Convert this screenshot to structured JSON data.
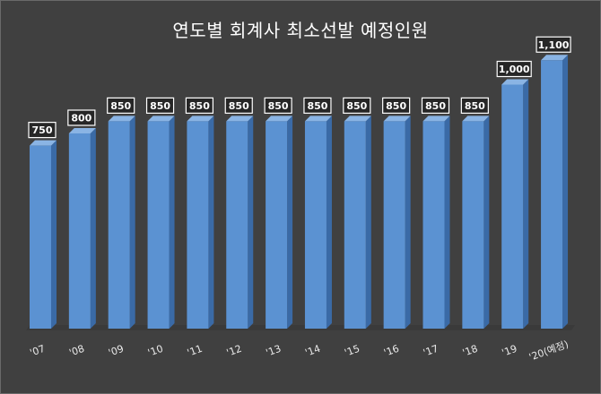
{
  "chart_data": {
    "type": "bar",
    "title": "연도별 회계사 최소선발 예정인원",
    "categories": [
      "'07",
      "'08",
      "'09",
      "'10",
      "'11",
      "'12",
      "'13",
      "'14",
      "'15",
      "'16",
      "'17",
      "'18",
      "'19",
      "'20(예정)"
    ],
    "values": [
      750,
      800,
      850,
      850,
      850,
      850,
      850,
      850,
      850,
      850,
      850,
      850,
      1000,
      1100
    ],
    "value_labels": [
      "750",
      "800",
      "850",
      "850",
      "850",
      "850",
      "850",
      "850",
      "850",
      "850",
      "850",
      "850",
      "1,000",
      "1,100"
    ],
    "xlabel": "",
    "ylabel": "",
    "ylim": [
      0,
      1200
    ],
    "grid": false,
    "colors": {
      "bar_front": "#5b92d2",
      "bar_side": "#3a6aa6",
      "bar_top": "#8ab4e4",
      "background": "#404040",
      "label_box": "#ffffff"
    }
  }
}
